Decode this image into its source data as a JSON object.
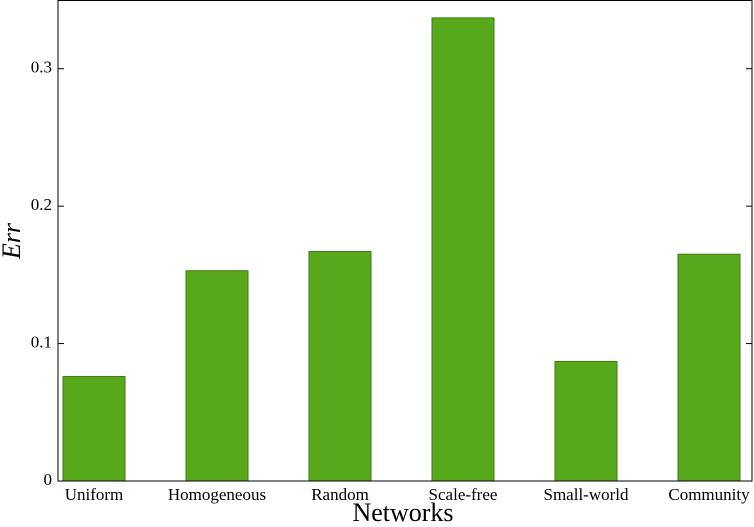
{
  "chart_data": {
    "type": "bar",
    "x_label": "Networks",
    "y_label": "Err",
    "categories": [
      "Uniform",
      "Homogeneous",
      "Random",
      "Scale-free",
      "Small-world",
      "Community"
    ],
    "values": [
      0.076,
      0.153,
      0.167,
      0.337,
      0.087,
      0.165
    ],
    "color": "#58a81c",
    "ylim": [
      0,
      0.35
    ],
    "yticks": [
      0,
      0.1,
      0.2,
      0.3
    ],
    "grid": false
  }
}
